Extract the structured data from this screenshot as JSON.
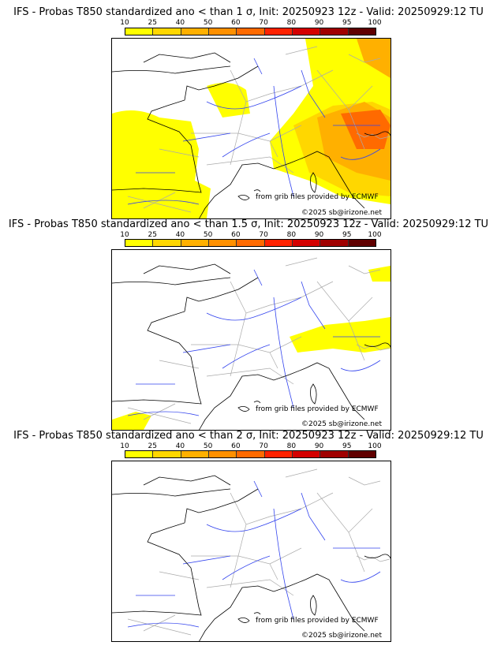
{
  "colorbar": {
    "labels": [
      "10",
      "25",
      "40",
      "50",
      "60",
      "70",
      "80",
      "90",
      "95",
      "100"
    ],
    "colors": [
      "#ffff00",
      "#ffd700",
      "#ffb000",
      "#ff9000",
      "#ff6a00",
      "#ff2200",
      "#d40000",
      "#a00000",
      "#600000"
    ]
  },
  "panels": [
    {
      "title": "IFS - Probas T850  standardized ano < than 1 σ, Init: 20250923 12z - Valid: 20250929:12 TU"
    },
    {
      "title": "IFS - Probas T850  standardized ano < than 1.5 σ, Init: 20250923 12z - Valid: 20250929:12 TU"
    },
    {
      "title": "IFS - Probas T850  standardized ano < than 2 σ, Init: 20250923 12z - Valid: 20250929:12 TU"
    }
  ],
  "credits": {
    "source": "from grib files provided by ECMWF",
    "copyright": "©2025 sb@irizone.net"
  }
}
